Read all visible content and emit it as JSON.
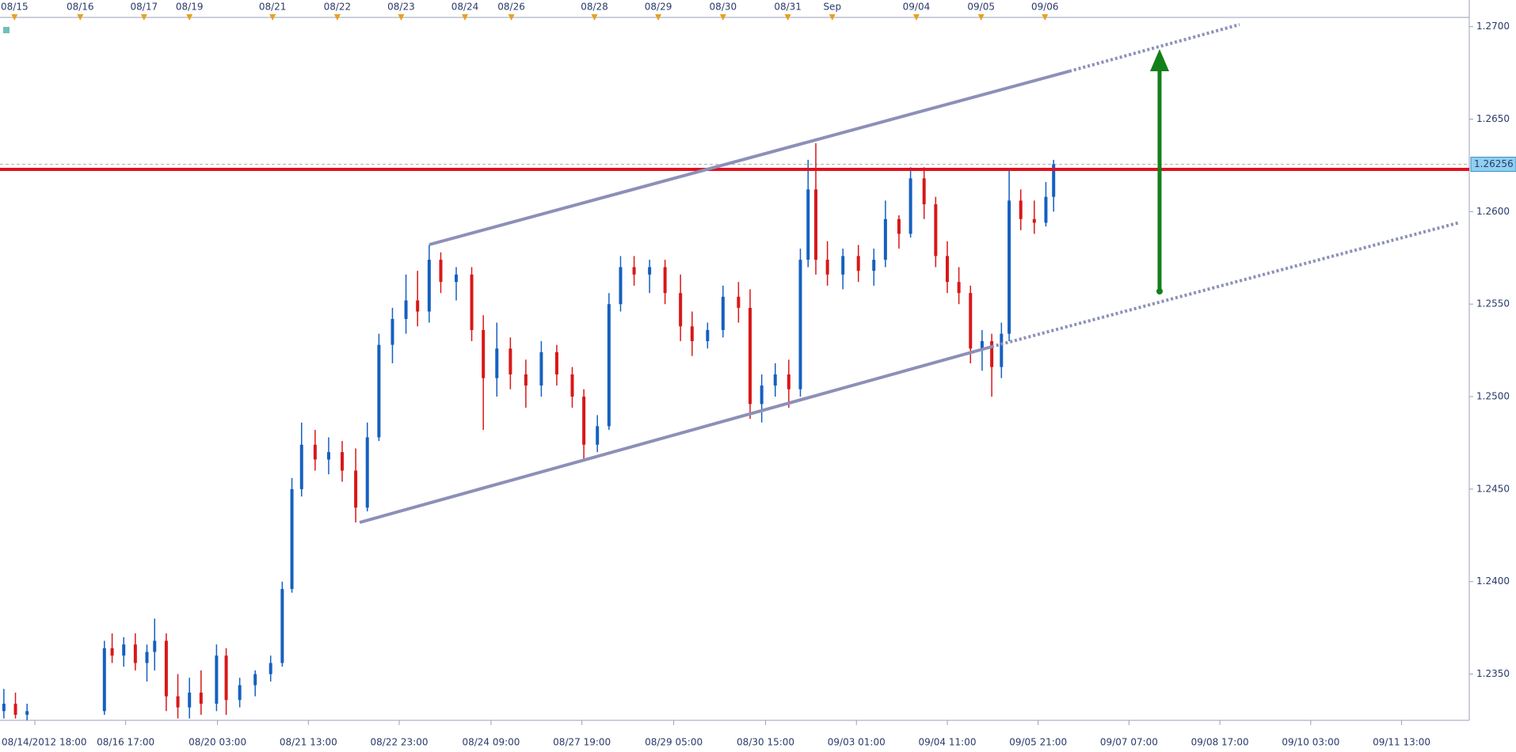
{
  "chart_data": {
    "type": "candlestick",
    "x": [
      2,
      8,
      14,
      54,
      58,
      64,
      70,
      76,
      80,
      86,
      92,
      98,
      104,
      112,
      117,
      124,
      132,
      140,
      146,
      151,
      156,
      163,
      170,
      177,
      184,
      190,
      196,
      203,
      210,
      216,
      222,
      228,
      236,
      244,
      250,
      257,
      264,
      272,
      280,
      288,
      296,
      302,
      309,
      315,
      321,
      328,
      336,
      344,
      352,
      358,
      366,
      374,
      382,
      388,
      394,
      401,
      408,
      414,
      418,
      422,
      428,
      436,
      444,
      452,
      458,
      465,
      471,
      478,
      484,
      490,
      496,
      502,
      508,
      513,
      518,
      522,
      528,
      535,
      541,
      545
    ],
    "open": [
      1.233,
      1.2334,
      1.2328,
      1.233,
      1.2364,
      1.236,
      1.2366,
      1.2356,
      1.2362,
      1.2368,
      1.2338,
      1.2332,
      1.234,
      1.2334,
      1.236,
      1.2336,
      1.2344,
      1.235,
      1.2356,
      1.2396,
      1.245,
      1.2474,
      1.2466,
      1.247,
      1.246,
      1.244,
      1.2478,
      1.2528,
      1.2542,
      1.2552,
      1.2546,
      1.2574,
      1.2562,
      1.2566,
      1.2536,
      1.251,
      1.2526,
      1.2512,
      1.2506,
      1.2524,
      1.2512,
      1.25,
      1.2474,
      1.2484,
      1.255,
      1.257,
      1.2566,
      1.257,
      1.2556,
      1.2538,
      1.253,
      1.2536,
      1.2554,
      1.2548,
      1.2496,
      1.2506,
      1.2512,
      1.2504,
      1.2574,
      1.2612,
      1.2574,
      1.2566,
      1.2576,
      1.2568,
      1.2574,
      1.2596,
      1.2588,
      1.2618,
      1.2604,
      1.2576,
      1.2562,
      1.2556,
      1.2526,
      1.253,
      1.2516,
      1.2534,
      1.2606,
      1.2596,
      1.2594,
      1.2608
    ],
    "high": [
      1.2342,
      1.234,
      1.2334,
      1.2368,
      1.2372,
      1.237,
      1.2372,
      1.2366,
      1.238,
      1.2372,
      1.235,
      1.2348,
      1.2352,
      1.2366,
      1.2364,
      1.2348,
      1.2352,
      1.236,
      1.24,
      1.2456,
      1.2486,
      1.2482,
      1.2478,
      1.2476,
      1.2472,
      1.2486,
      1.2534,
      1.2548,
      1.2566,
      1.2568,
      1.2582,
      1.2578,
      1.257,
      1.257,
      1.2544,
      1.254,
      1.2532,
      1.252,
      1.253,
      1.2528,
      1.2516,
      1.2504,
      1.249,
      1.2556,
      1.2576,
      1.2576,
      1.2574,
      1.2574,
      1.2566,
      1.2546,
      1.254,
      1.256,
      1.2562,
      1.2558,
      1.2512,
      1.2518,
      1.252,
      1.258,
      1.2628,
      1.2637,
      1.2584,
      1.258,
      1.2582,
      1.258,
      1.2606,
      1.2598,
      1.2624,
      1.2624,
      1.2608,
      1.2584,
      1.257,
      1.256,
      1.2536,
      1.2534,
      1.254,
      1.2623,
      1.2612,
      1.2606,
      1.2616,
      1.2628
    ],
    "low": [
      1.2326,
      1.2326,
      1.2325,
      1.2328,
      1.2356,
      1.2354,
      1.2352,
      1.2346,
      1.2352,
      1.233,
      1.2326,
      1.2326,
      1.2328,
      1.233,
      1.2328,
      1.2332,
      1.2338,
      1.2346,
      1.2354,
      1.2394,
      1.2446,
      1.246,
      1.2458,
      1.2454,
      1.2432,
      1.2438,
      1.2476,
      1.2518,
      1.2534,
      1.2538,
      1.254,
      1.2556,
      1.2552,
      1.253,
      1.2482,
      1.25,
      1.2504,
      1.2494,
      1.25,
      1.2506,
      1.2494,
      1.2466,
      1.247,
      1.2482,
      1.2546,
      1.256,
      1.2556,
      1.255,
      1.253,
      1.2522,
      1.2526,
      1.2532,
      1.254,
      1.2488,
      1.2486,
      1.25,
      1.2494,
      1.25,
      1.257,
      1.2566,
      1.256,
      1.2558,
      1.2562,
      1.256,
      1.257,
      1.258,
      1.2586,
      1.2596,
      1.257,
      1.2556,
      1.255,
      1.2518,
      1.2514,
      1.25,
      1.251,
      1.253,
      1.259,
      1.2588,
      1.2592,
      1.26
    ],
    "close": [
      1.2334,
      1.2328,
      1.233,
      1.2364,
      1.236,
      1.2366,
      1.2356,
      1.2362,
      1.2368,
      1.2338,
      1.2332,
      1.234,
      1.2334,
      1.236,
      1.2336,
      1.2344,
      1.235,
      1.2356,
      1.2396,
      1.245,
      1.2474,
      1.2466,
      1.247,
      1.246,
      1.244,
      1.2478,
      1.2528,
      1.2542,
      1.2552,
      1.2546,
      1.2574,
      1.2562,
      1.2566,
      1.2536,
      1.251,
      1.2526,
      1.2512,
      1.2506,
      1.2524,
      1.2512,
      1.25,
      1.2474,
      1.2484,
      1.255,
      1.257,
      1.2566,
      1.257,
      1.2556,
      1.2538,
      1.253,
      1.2536,
      1.2554,
      1.2548,
      1.2496,
      1.2506,
      1.2512,
      1.2504,
      1.2574,
      1.2612,
      1.2574,
      1.2566,
      1.2576,
      1.2568,
      1.2574,
      1.2596,
      1.2588,
      1.2618,
      1.2604,
      1.2576,
      1.2562,
      1.2556,
      1.2526,
      1.253,
      1.2516,
      1.2534,
      1.2606,
      1.2596,
      1.2594,
      1.2608,
      1.26256
    ],
    "up_color": "#1560c0",
    "down_color": "#d81818",
    "last_price": 1.26256,
    "xlim": [
      0,
      760
    ],
    "ylim": [
      1.2325,
      1.2705
    ],
    "yticks": [
      {
        "value": 1.235,
        "label": "1.2350"
      },
      {
        "value": 1.24,
        "label": "1.2400"
      },
      {
        "value": 1.245,
        "label": "1.2450"
      },
      {
        "value": 1.25,
        "label": "1.2500"
      },
      {
        "value": 1.255,
        "label": "1.2550"
      },
      {
        "value": 1.26,
        "label": "1.2600"
      },
      {
        "value": 1.265,
        "label": "1.2650"
      },
      {
        "value": 1.27,
        "label": "1.2700"
      }
    ],
    "xticks": [
      {
        "value": 18,
        "label": "08/14/2012 18:00"
      },
      {
        "value": 65,
        "label": "08/16 17:00"
      },
      {
        "value": 112.5,
        "label": "08/20 03:00"
      },
      {
        "value": 159.5,
        "label": "08/21 13:00"
      },
      {
        "value": 206.5,
        "label": "08/22 23:00"
      },
      {
        "value": 254,
        "label": "08/24 09:00"
      },
      {
        "value": 301,
        "label": "08/27 19:00"
      },
      {
        "value": 348.5,
        "label": "08/29 05:00"
      },
      {
        "value": 396,
        "label": "08/30 15:00"
      },
      {
        "value": 443,
        "label": "09/03 01:00"
      },
      {
        "value": 490,
        "label": "09/04 11:00"
      },
      {
        "value": 537,
        "label": "09/05 21:00"
      },
      {
        "value": 584,
        "label": "09/07 07:00"
      },
      {
        "value": 631,
        "label": "09/08 17:00"
      },
      {
        "value": 678,
        "label": "09/10 03:00"
      },
      {
        "value": 725,
        "label": "09/11 13:00"
      }
    ],
    "top_xticks": [
      {
        "value": 7.5,
        "label": "08/15"
      },
      {
        "value": 41.5,
        "label": "08/16"
      },
      {
        "value": 74.5,
        "label": "08/17"
      },
      {
        "value": 98,
        "label": "08/19"
      },
      {
        "value": 141,
        "label": "08/21"
      },
      {
        "value": 174.5,
        "label": "08/22"
      },
      {
        "value": 207.5,
        "label": "08/23"
      },
      {
        "value": 240.5,
        "label": "08/24"
      },
      {
        "value": 264.5,
        "label": "08/26"
      },
      {
        "value": 307.5,
        "label": "08/28"
      },
      {
        "value": 340.5,
        "label": "08/29"
      },
      {
        "value": 374,
        "label": "08/30"
      },
      {
        "value": 407.5,
        "label": "08/31"
      },
      {
        "value": 430.5,
        "label": "Sep"
      },
      {
        "value": 474,
        "label": "09/04"
      },
      {
        "value": 507.5,
        "label": "09/05"
      },
      {
        "value": 540.5,
        "label": "09/06"
      }
    ]
  }
}
